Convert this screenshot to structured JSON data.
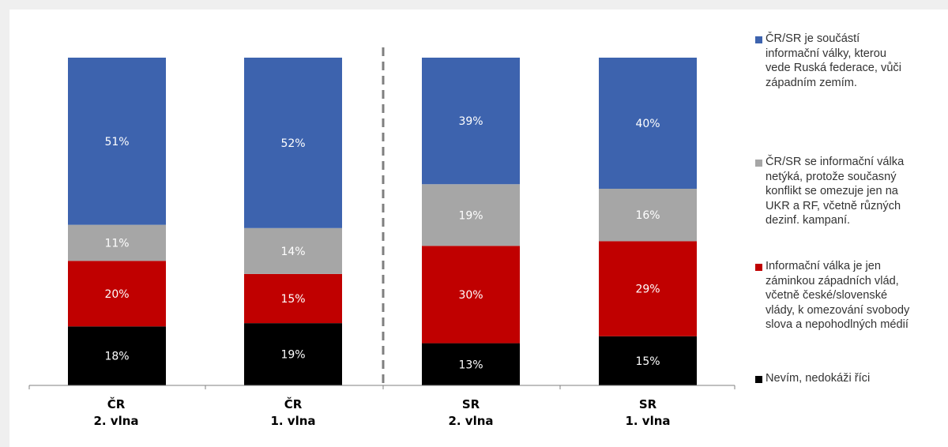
{
  "chart_data": {
    "type": "bar",
    "stacked": true,
    "normalized": true,
    "categories": [
      {
        "line1": "ČR",
        "line2": "2. vlna"
      },
      {
        "line1": "ČR",
        "line2": "1. vlna"
      },
      {
        "line1": "SR",
        "line2": "2. vlna"
      },
      {
        "line1": "SR",
        "line2": "1. vlna"
      }
    ],
    "series": [
      {
        "name": "Nevím, nedokáži říci",
        "lines": [
          "Nevím, nedokáži říci"
        ],
        "color": "#000000",
        "values": [
          18,
          19,
          13,
          15
        ],
        "labels": [
          "18%",
          "19%",
          "13%",
          "15%"
        ]
      },
      {
        "name": "Informační válka je jen záminkou západních vlád, včetně české/slovenské vlády, k omezování svobody slova a nepohodlných médií",
        "lines": [
          "Informační válka je jen",
          "záminkou západních vlád,",
          "včetně české/slovenské",
          "vlády, k omezování svobody",
          "slova a nepohodlných médií"
        ],
        "color": "#c00000",
        "values": [
          20,
          15,
          30,
          29
        ],
        "labels": [
          "20%",
          "15%",
          "30%",
          "29%"
        ]
      },
      {
        "name": "ČR/SR se informační válka netýká, protože současný konflikt se omezuje jen na UKR a RF, včetně různých dezinf. kampaní.",
        "lines": [
          "ČR/SR se informační válka",
          "netýká, protože současný",
          "konflikt se omezuje jen na",
          "UKR a RF, včetně různých",
          "dezinf. kampaní."
        ],
        "color": "#a6a6a6",
        "values": [
          11,
          14,
          19,
          16
        ],
        "labels": [
          "11%",
          "14%",
          "19%",
          "16%"
        ]
      },
      {
        "name": "ČR/SR je součástí informační války, kterou vede Ruská federace, vůči západním zemím.",
        "lines": [
          "ČR/SR je součástí",
          "informační války, kterou",
          "vede Ruská federace, vůči",
          "západním zemím."
        ],
        "color": "#3d63ae",
        "values": [
          51,
          52,
          39,
          40
        ],
        "labels": [
          "51%",
          "52%",
          "39%",
          "40%"
        ]
      }
    ],
    "legend_order": [
      3,
      2,
      1,
      0
    ],
    "divider": "dashed line between ČR and SR groups",
    "legend_position": "right",
    "grid": false,
    "ylim": [
      0,
      100
    ]
  }
}
